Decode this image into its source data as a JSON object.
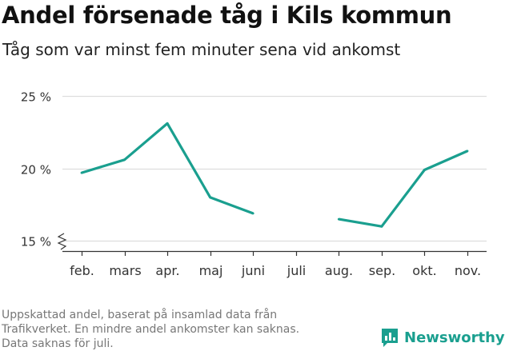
{
  "title": "Andel försenade tåg i Kils kommun",
  "subtitle": "Tåg som var minst fem minuter sena vid ankomst",
  "footnote": [
    "Uppskattad andel, baserat på insamlad data från",
    "Trafikverket. En mindre andel ankomster kan saknas.",
    "Data saknas för juli."
  ],
  "logo": {
    "text": "Newsworthy",
    "icon": "bar-chart-icon"
  },
  "colors": {
    "line": "#1a9f8f",
    "grid": "#dddddd",
    "axis": "#333333",
    "text": "#333333",
    "footnote": "#777777"
  },
  "chart_data": {
    "type": "line",
    "title": "Andel försenade tåg i Kils kommun",
    "subtitle": "Tåg som var minst fem minuter sena vid ankomst",
    "categories": [
      "feb.",
      "mars",
      "apr.",
      "maj",
      "juni",
      "juli",
      "aug.",
      "sep.",
      "okt.",
      "nov."
    ],
    "series": [
      {
        "values": [
          19.7,
          20.6,
          23.1,
          18.0,
          16.9,
          null,
          16.5,
          16.0,
          19.9,
          21.2
        ]
      }
    ],
    "yticks": [
      15,
      20,
      25
    ],
    "ytick_labels": [
      "15 %",
      "20 %",
      "25 %"
    ],
    "ylim": [
      14.3,
      25
    ],
    "axis_break": true,
    "grid": "horizontal",
    "legend": "none"
  }
}
